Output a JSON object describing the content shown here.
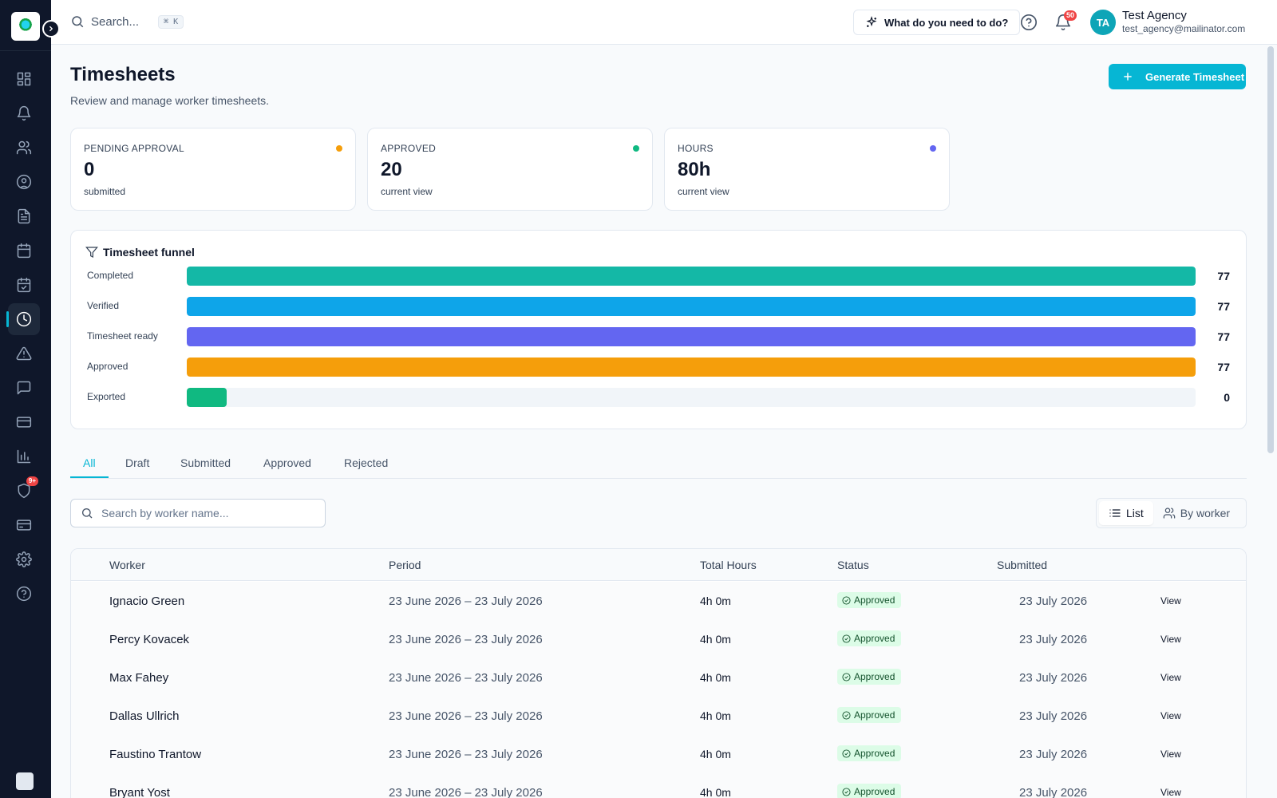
{
  "topbar": {
    "search_placeholder": "Search...",
    "search_shortcut": "⌘ K",
    "ai_button_label": "What do you need to do?",
    "notification_count": "50",
    "avatar_initials": "TA",
    "user_name": "Test Agency",
    "user_email": "test_agency@mailinator.com"
  },
  "sidebar": {
    "items": [
      {
        "icon": "dashboard-icon"
      },
      {
        "icon": "bell-icon"
      },
      {
        "icon": "users-icon"
      },
      {
        "icon": "user-circle-icon"
      },
      {
        "icon": "document-icon"
      },
      {
        "icon": "calendar-icon"
      },
      {
        "icon": "calendar-check-icon"
      },
      {
        "icon": "clock-icon",
        "active": true
      },
      {
        "icon": "alert-triangle-icon"
      },
      {
        "icon": "message-icon"
      },
      {
        "icon": "credit-card-icon"
      },
      {
        "icon": "bar-chart-icon"
      },
      {
        "icon": "shield-icon",
        "badge": "9+"
      },
      {
        "icon": "wallet-icon"
      },
      {
        "icon": "settings-icon"
      },
      {
        "icon": "help-circle-icon"
      }
    ]
  },
  "page": {
    "title": "Timesheets",
    "subtitle": "Review and manage worker timesheets.",
    "generate_button": "Generate Timesheet"
  },
  "stats": [
    {
      "label": "PENDING APPROVAL",
      "value": "0",
      "sub": "submitted",
      "dot_color": "#f59e0b"
    },
    {
      "label": "APPROVED",
      "value": "20",
      "sub": "current view",
      "dot_color": "#10b981"
    },
    {
      "label": "HOURS",
      "value": "80h",
      "sub": "current view",
      "dot_color": "#6366f1"
    }
  ],
  "funnel": {
    "title": "Timesheet funnel",
    "max": 77,
    "rows": [
      {
        "label": "Completed",
        "value": 77,
        "color": "#14b8a6"
      },
      {
        "label": "Verified",
        "value": 77,
        "color": "#0ea5e9"
      },
      {
        "label": "Timesheet ready",
        "value": 77,
        "color": "#6366f1"
      },
      {
        "label": "Approved",
        "value": 77,
        "color": "#f59e0b"
      },
      {
        "label": "Exported",
        "value": 0,
        "color": "#10b981"
      }
    ]
  },
  "tabs": [
    "All",
    "Draft",
    "Submitted",
    "Approved",
    "Rejected"
  ],
  "filters": {
    "worker_search_placeholder": "Search by worker name...",
    "view_list": "List",
    "view_by_worker": "By worker"
  },
  "table": {
    "columns": [
      "Worker",
      "Period",
      "Total Hours",
      "Status",
      "Submitted"
    ],
    "rows": [
      {
        "worker": "Ignacio Green",
        "period": "23 June 2026 – 23 July 2026",
        "hours": "4h 0m",
        "status": "Approved",
        "submitted": "23 July 2026",
        "action": "View"
      },
      {
        "worker": "Percy Kovacek",
        "period": "23 June 2026 – 23 July 2026",
        "hours": "4h 0m",
        "status": "Approved",
        "submitted": "23 July 2026",
        "action": "View"
      },
      {
        "worker": "Max Fahey",
        "period": "23 June 2026 – 23 July 2026",
        "hours": "4h 0m",
        "status": "Approved",
        "submitted": "23 July 2026",
        "action": "View"
      },
      {
        "worker": "Dallas Ullrich",
        "period": "23 June 2026 – 23 July 2026",
        "hours": "4h 0m",
        "status": "Approved",
        "submitted": "23 July 2026",
        "action": "View"
      },
      {
        "worker": "Faustino Trantow",
        "period": "23 June 2026 – 23 July 2026",
        "hours": "4h 0m",
        "status": "Approved",
        "submitted": "23 July 2026",
        "action": "View"
      },
      {
        "worker": "Bryant Yost",
        "period": "23 June 2026 – 23 July 2026",
        "hours": "4h 0m",
        "status": "Approved",
        "submitted": "23 July 2026",
        "action": "View"
      }
    ]
  }
}
